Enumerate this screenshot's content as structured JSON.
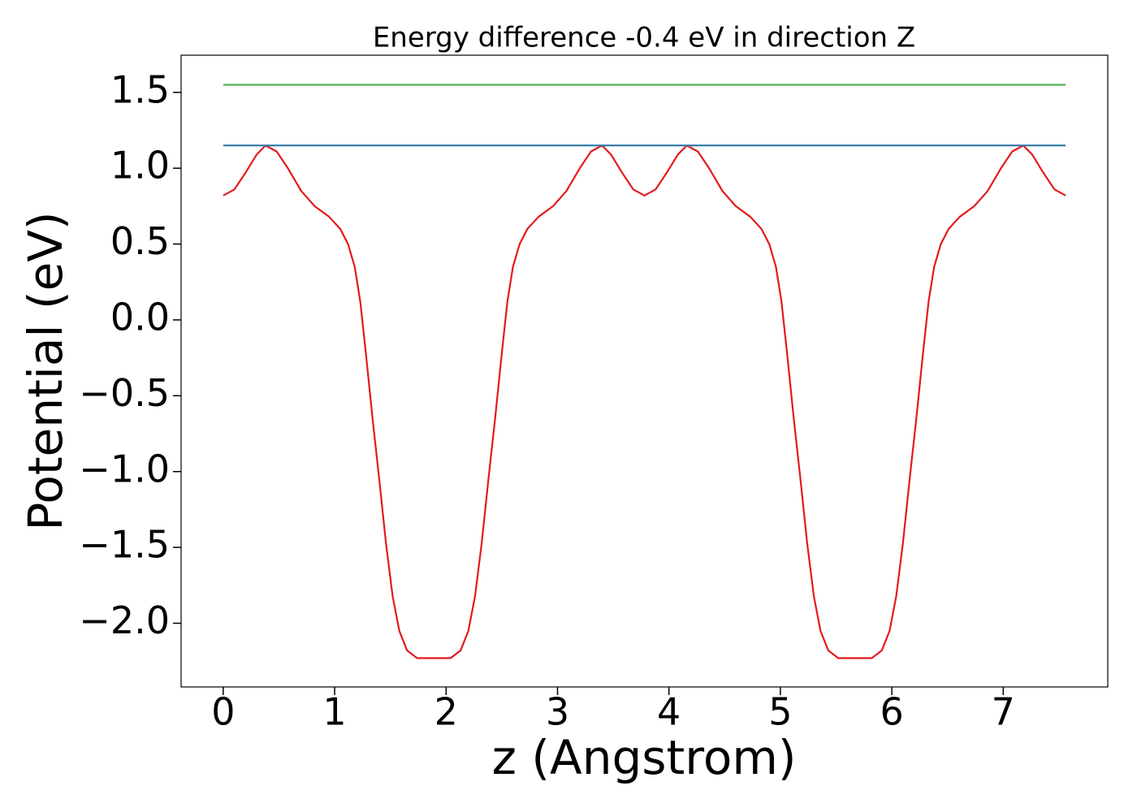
{
  "chart_data": {
    "type": "line",
    "title": "Energy difference -0.4 eV in direction Z",
    "xlabel": "z (Angstrom)",
    "ylabel": "Potential (eV)",
    "xlim": [
      -0.378,
      7.938
    ],
    "ylim": [
      -2.42,
      1.745
    ],
    "xticks": [
      0,
      1,
      2,
      3,
      4,
      5,
      6,
      7
    ],
    "yticks": [
      {
        "value": -2.0,
        "label": "−2.0"
      },
      {
        "value": -1.5,
        "label": "−1.5"
      },
      {
        "value": -1.0,
        "label": "−1.0"
      },
      {
        "value": -0.5,
        "label": "−0.5"
      },
      {
        "value": 0.0,
        "label": "0.0"
      },
      0.5,
      {
        "value": 1.0,
        "label": "1.0"
      },
      1.5
    ],
    "grid": false,
    "series": [
      {
        "color": "#e41a1c",
        "x": [
          0,
          0.1,
          0.2,
          0.3,
          0.38,
          0.48,
          0.58,
          0.7,
          0.82,
          0.95,
          1.05,
          1.12,
          1.18,
          1.23,
          1.28,
          1.34,
          1.4,
          1.46,
          1.52,
          1.58,
          1.65,
          1.74,
          1.89,
          2.04,
          2.13,
          2.2,
          2.26,
          2.32,
          2.38,
          2.44,
          2.5,
          2.55,
          2.6,
          2.66,
          2.73,
          2.83,
          2.96,
          3.08,
          3.2,
          3.3,
          3.4,
          3.48,
          3.58,
          3.68,
          3.78,
          3.88,
          3.98,
          4.08,
          4.16,
          4.26,
          4.36,
          4.48,
          4.6,
          4.73,
          4.83,
          4.9,
          4.96,
          5.01,
          5.06,
          5.12,
          5.18,
          5.24,
          5.3,
          5.36,
          5.43,
          5.52,
          5.67,
          5.82,
          5.91,
          5.98,
          6.04,
          6.1,
          6.16,
          6.22,
          6.28,
          6.33,
          6.38,
          6.44,
          6.51,
          6.61,
          6.74,
          6.86,
          6.98,
          7.08,
          7.18,
          7.26,
          7.36,
          7.46,
          7.56
        ],
        "values": [
          0.82,
          0.86,
          0.97,
          1.09,
          1.15,
          1.11,
          1.0,
          0.85,
          0.75,
          0.68,
          0.6,
          0.5,
          0.35,
          0.12,
          -0.22,
          -0.65,
          -1.05,
          -1.47,
          -1.82,
          -2.05,
          -2.18,
          -2.23,
          -2.23,
          -2.23,
          -2.18,
          -2.05,
          -1.82,
          -1.47,
          -1.05,
          -0.65,
          -0.22,
          0.12,
          0.35,
          0.5,
          0.6,
          0.68,
          0.75,
          0.85,
          1.0,
          1.11,
          1.15,
          1.09,
          0.97,
          0.86,
          0.82,
          0.86,
          0.97,
          1.09,
          1.15,
          1.11,
          1.0,
          0.85,
          0.75,
          0.68,
          0.6,
          0.5,
          0.35,
          0.12,
          -0.22,
          -0.65,
          -1.05,
          -1.47,
          -1.82,
          -2.05,
          -2.18,
          -2.23,
          -2.23,
          -2.23,
          -2.18,
          -2.05,
          -1.82,
          -1.47,
          -1.05,
          -0.65,
          -0.22,
          0.12,
          0.35,
          0.5,
          0.6,
          0.68,
          0.75,
          0.85,
          1.0,
          1.11,
          1.15,
          1.09,
          0.97,
          0.86,
          0.82
        ]
      },
      {
        "color": "#3a7fa8",
        "x": [
          0,
          7.56
        ],
        "values": [
          1.15,
          1.15
        ]
      },
      {
        "color": "#4daf4a",
        "x": [
          0,
          7.56
        ],
        "values": [
          1.55,
          1.55
        ]
      }
    ]
  }
}
